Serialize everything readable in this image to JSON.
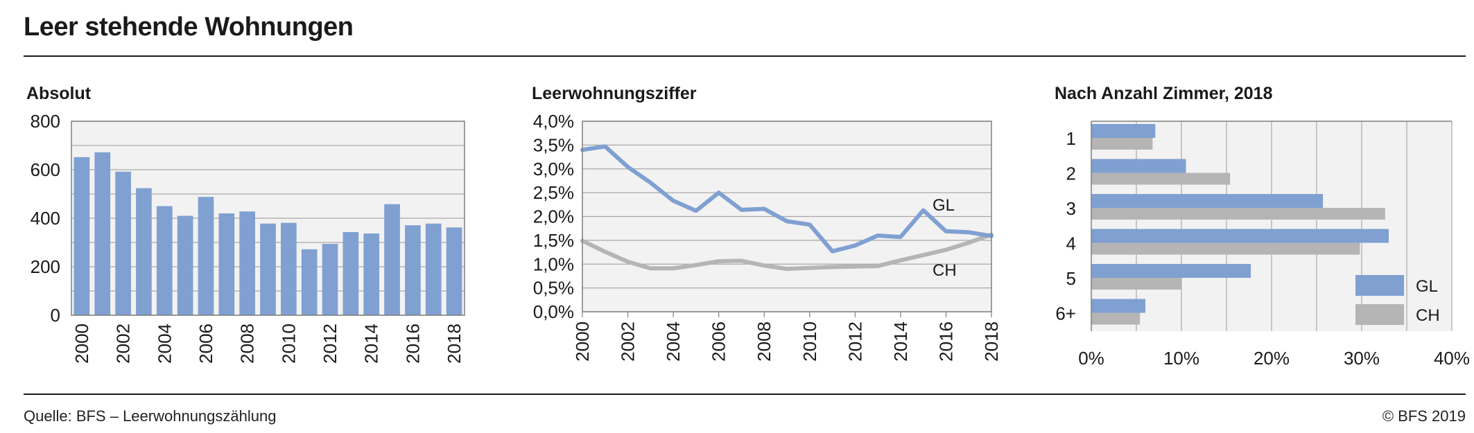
{
  "header": {
    "title": "Leer stehende Wohnungen"
  },
  "footer": {
    "source": "Quelle: BFS – Leerwohnungszählung",
    "copyright": "© BFS 2019"
  },
  "colors": {
    "gl": "#7fa0d1",
    "ch": "#b5b5b5",
    "plot_bg": "#f2f2f2",
    "grid": "#a8a8a8",
    "axis": "#7f7f7f"
  },
  "chart_data": [
    {
      "type": "bar",
      "title": "Absolut",
      "categories": [
        "2000",
        "2001",
        "2002",
        "2003",
        "2004",
        "2005",
        "2006",
        "2007",
        "2008",
        "2009",
        "2010",
        "2011",
        "2012",
        "2013",
        "2014",
        "2015",
        "2016",
        "2017",
        "2018"
      ],
      "x_tick_labels": [
        "2000",
        "2002",
        "2004",
        "2006",
        "2008",
        "2010",
        "2012",
        "2014",
        "2016",
        "2018"
      ],
      "values": [
        652,
        672,
        592,
        524,
        450,
        410,
        488,
        420,
        428,
        378,
        381,
        272,
        294,
        343,
        337,
        458,
        371,
        378,
        362
      ],
      "ylim": [
        0,
        800
      ],
      "y_ticks": [
        0,
        200,
        400,
        600,
        800
      ],
      "y_tick_labels": [
        "0",
        "200",
        "400",
        "600",
        "800"
      ],
      "grid": true
    },
    {
      "type": "line",
      "title": "Leerwohnungsziffer",
      "x": [
        2000,
        2001,
        2002,
        2003,
        2004,
        2005,
        2006,
        2007,
        2008,
        2009,
        2010,
        2011,
        2012,
        2013,
        2014,
        2015,
        2016,
        2017,
        2018
      ],
      "x_tick_labels": [
        "2000",
        "2002",
        "2004",
        "2006",
        "2008",
        "2010",
        "2012",
        "2014",
        "2016",
        "2018"
      ],
      "series": [
        {
          "name": "GL",
          "values": [
            3.4,
            3.47,
            3.04,
            2.71,
            2.33,
            2.12,
            2.5,
            2.14,
            2.16,
            1.9,
            1.83,
            1.27,
            1.39,
            1.6,
            1.57,
            2.13,
            1.69,
            1.67,
            1.59
          ]
        },
        {
          "name": "CH",
          "values": [
            1.49,
            1.26,
            1.05,
            0.91,
            0.91,
            0.98,
            1.06,
            1.07,
            0.97,
            0.9,
            0.92,
            0.94,
            0.95,
            0.96,
            1.08,
            1.19,
            1.3,
            1.45,
            1.62
          ]
        }
      ],
      "ylim": [
        0,
        4.0
      ],
      "y_tick_labels": [
        "0,0%",
        "0,5%",
        "1,0%",
        "1,5%",
        "2,0%",
        "2,5%",
        "3,0%",
        "3,5%",
        "4,0%"
      ],
      "grid": true
    },
    {
      "type": "bar",
      "orientation": "horizontal",
      "title": "Nach Anzahl Zimmer, 2018",
      "categories": [
        "1",
        "2",
        "3",
        "4",
        "5",
        "6+"
      ],
      "series": [
        {
          "name": "GL",
          "values": [
            7.1,
            10.5,
            25.7,
            33.0,
            17.7,
            6.0
          ]
        },
        {
          "name": "CH",
          "values": [
            6.8,
            15.4,
            32.6,
            29.8,
            10.0,
            5.4
          ]
        }
      ],
      "xlim": [
        0,
        40
      ],
      "x_tick_labels": [
        "0%",
        "10%",
        "20%",
        "30%",
        "40%"
      ],
      "legend": "bottom-right",
      "grid": true
    }
  ]
}
